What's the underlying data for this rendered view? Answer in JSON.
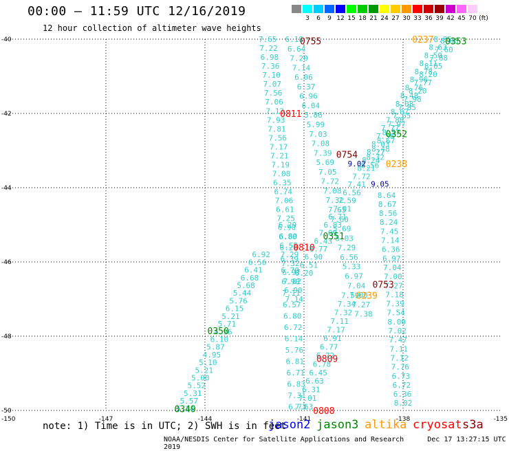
{
  "title": "00:00 – 11:59 UTC 12/16/2019",
  "subtitle": "12 hour collection of altimeter wave heights",
  "legend": {
    "labels": [
      "",
      "3",
      "6",
      "9",
      "12",
      "15",
      "18",
      "21",
      "24",
      "27",
      "30",
      "33",
      "36",
      "39",
      "42",
      "45",
      "70",
      "(ft)"
    ],
    "colors": [
      "#888888",
      "#00ffff",
      "#00ccff",
      "#0066ff",
      "#0000ff",
      "#00ff00",
      "#00cc00",
      "#009900",
      "#ffff00",
      "#ffcc00",
      "#ff9900",
      "#ff0000",
      "#cc0000",
      "#990000",
      "#cc00cc",
      "#ff66ff",
      "#ffccff",
      "#ffffff"
    ]
  },
  "axes": {
    "x_labels": [
      "-150",
      "-147",
      "-144",
      "-141",
      "-138",
      "-135"
    ],
    "y_labels": [
      "-40",
      "-42",
      "-44",
      "-46",
      "-48",
      "-50"
    ]
  },
  "note": "note: 1) Time is in UTC; 2) SWH is in feet",
  "satellites": [
    {
      "name": "jason2",
      "color": "#0000ff"
    },
    {
      "name": "jason3",
      "color": "#008800"
    },
    {
      "name": "altika",
      "color": "#ff9900"
    },
    {
      "name": "cryosat",
      "color": "#ff0000"
    },
    {
      "name": "s3a",
      "color": "#880000"
    }
  ],
  "footer_left": "NOAA/NESDIS Center for Satellite Applications and Research",
  "footer_right": "Dec 17 13:27:15 UTC 2019",
  "time_labels": [
    {
      "text": "0755",
      "color": "#880000",
      "lon": -140.8,
      "lat": -40.05
    },
    {
      "text": "0811",
      "color": "#ff0000",
      "lon": -141.4,
      "lat": -42.0
    },
    {
      "text": "0754",
      "color": "#880000",
      "lon": -139.7,
      "lat": -43.1
    },
    {
      "text": "0810",
      "color": "#ff0000",
      "lon": -141.0,
      "lat": -45.6
    },
    {
      "text": "0753",
      "color": "#880000",
      "lon": -138.6,
      "lat": -46.6
    },
    {
      "text": "0809",
      "color": "#ff0000",
      "lon": -140.3,
      "lat": -48.6
    },
    {
      "text": "0808",
      "color": "#ff0000",
      "lon": -140.4,
      "lat": -50.0
    },
    {
      "text": "0237",
      "color": "#ff9900",
      "lon": -137.4,
      "lat": -40.0
    },
    {
      "text": "0353",
      "color": "#008800",
      "lon": -136.4,
      "lat": -40.05
    },
    {
      "text": "0352",
      "color": "#008800",
      "lon": -138.2,
      "lat": -42.55
    },
    {
      "text": "0238",
      "color": "#ff9900",
      "lon": -138.2,
      "lat": -43.35
    },
    {
      "text": "0351",
      "color": "#008800",
      "lon": -140.1,
      "lat": -45.3
    },
    {
      "text": "0239",
      "color": "#ff9900",
      "lon": -139.1,
      "lat": -46.9
    },
    {
      "text": "0350",
      "color": "#008800",
      "lon": -143.6,
      "lat": -47.85
    },
    {
      "text": "0349",
      "color": "#008800",
      "lon": -144.6,
      "lat": -49.95
    }
  ],
  "tracks": [
    {
      "color": "#33cccc",
      "start_lon": -142.1,
      "start_lat": -40.0,
      "end_lon": -141.3,
      "end_lat": -47.0,
      "values": [
        "7.65",
        "7.22",
        "6.98",
        "7.36",
        "7.10",
        "7.07",
        "7.56",
        "7.06",
        "7.13",
        "7.93",
        "7.81",
        "7.56",
        "7.17",
        "7.21",
        "7.19",
        "7.08",
        "6.35",
        "6.74",
        "7.06",
        "6.61",
        "7.25",
        "6.90",
        "6.80",
        "6.55",
        "7.29",
        "7.32",
        "6.97",
        "7.02",
        "6.90",
        "7.14"
      ]
    },
    {
      "color": "#33cccc",
      "start_lon": -141.3,
      "start_lat": -40.0,
      "end_lon": -139.2,
      "end_lat": -47.4,
      "values": [
        "6.18",
        "6.64",
        "7.20",
        "7.14",
        "6.06",
        "6.37",
        "6.96",
        "6.04",
        "5.86",
        "5.99",
        "7.03",
        "7.08",
        "7.39",
        "5.69",
        "7.05",
        "7.72",
        "7.08",
        "7.32",
        "7.65",
        "7.60",
        "5.69",
        "5.03",
        "7.29",
        "6.56",
        "5.33",
        "6.97",
        "7.04",
        "7.00",
        "7.27",
        "7.38"
      ]
    },
    {
      "color": "#33cccc",
      "start_lon": -136.8,
      "start_lat": -40.0,
      "end_lon": -141.0,
      "end_lat": -46.3,
      "values": [
        "8.85",
        "8.63",
        "8.50",
        "8.11",
        "8.78",
        "8.96",
        "8.76",
        "8.48",
        "8.08",
        "8.07",
        "7.88",
        "7.77",
        "7.56",
        "8.03",
        "8.27",
        "8.24",
        "8.21",
        "7.72",
        "7.41",
        "6.56",
        "7.59",
        "7.01",
        "6.71",
        "6.83",
        "7.09",
        "6.43",
        "6.77",
        "6.90",
        "6.51",
        "6.20"
      ]
    },
    {
      "color": "#33cccc",
      "start_lon": -136.6,
      "start_lat": -40.05,
      "end_lon": -139.0,
      "end_lat": -43.4,
      "values": [
        "8.08",
        "7.60",
        "7.88",
        "8.05",
        "8.20",
        "7.77",
        "8.20",
        "7.98",
        "7.85",
        "7.65",
        "7.97",
        "8.57",
        "8.67",
        "8.48",
        "8.32",
        "8.56"
      ]
    },
    {
      "color": "#33cccc",
      "start_lon": -138.5,
      "start_lat": -44.2,
      "end_lon": -138.0,
      "end_lat": -49.8,
      "values": [
        "8.64",
        "8.67",
        "8.56",
        "8.24",
        "7.45",
        "7.14",
        "6.36",
        "6.97",
        "7.04",
        "7.00",
        "7.27",
        "7.18",
        "7.39",
        "7.54",
        "8.00",
        "7.02",
        "7.47",
        "7.11",
        "7.12",
        "7.76",
        "6.73",
        "6.72",
        "6.36",
        "8.02"
      ]
    },
    {
      "color": "#33cccc",
      "start_lon": -139.6,
      "start_lat": -46.9,
      "end_lon": -141.0,
      "end_lat": -49.9,
      "values": [
        "7.59",
        "7.34",
        "7.32",
        "7.11",
        "7.17",
        "6.91",
        "6.77",
        "6.72",
        "6.78",
        "6.45",
        "6.63",
        "6.31",
        "7.01",
        "7.63"
      ]
    },
    {
      "color": "#33cccc",
      "start_lon": -141.5,
      "start_lat": -45.0,
      "end_lon": -141.2,
      "end_lat": -49.9,
      "values": [
        "6.29",
        "6.80",
        "6.28",
        "6.39",
        "6.70",
        "6.90",
        "7.11",
        "6.57",
        "6.80",
        "6.72",
        "6.14",
        "5.76",
        "6.81",
        "6.71",
        "6.83",
        "7.31",
        "6.73"
      ]
    },
    {
      "color": "#33cccc",
      "start_lon": -142.3,
      "start_lat": -45.8,
      "end_lon": -144.6,
      "end_lat": -49.95,
      "values": [
        "6.92",
        "6.56",
        "6.41",
        "6.68",
        "5.68",
        "5.44",
        "5.76",
        "6.15",
        "5.21",
        "5.71",
        "4.96",
        "6.10",
        "5.87",
        "4.95",
        "5.10",
        "5.21",
        "5.00",
        "5.52",
        "5.31",
        "5.57",
        "5.34"
      ]
    }
  ],
  "extra_values": [
    {
      "text": "9.02",
      "color": "#000099",
      "lon": -139.4,
      "lat": -43.35
    },
    {
      "text": "9.05",
      "color": "#000099",
      "lon": -138.7,
      "lat": -43.9
    }
  ]
}
